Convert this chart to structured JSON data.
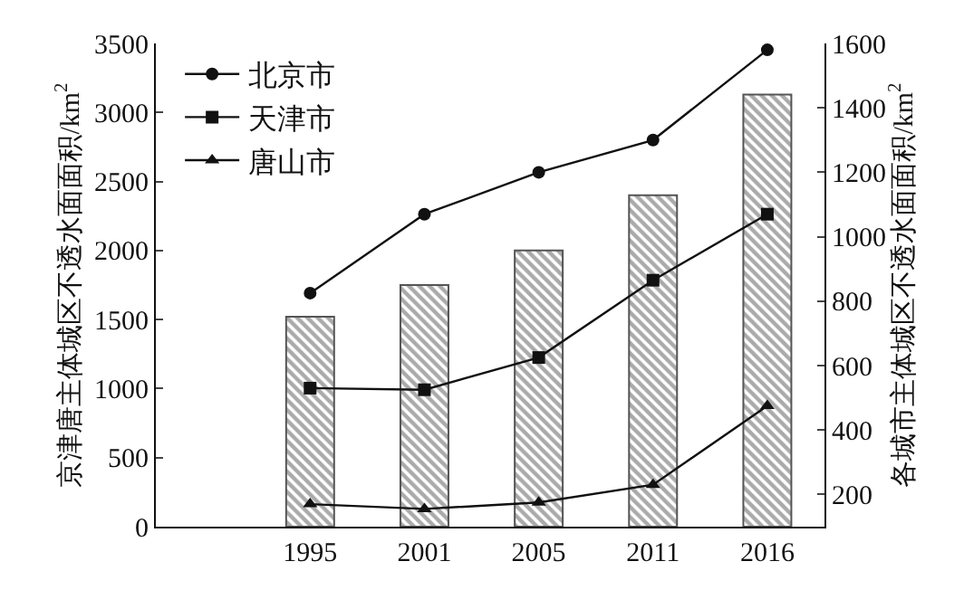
{
  "chart_data": {
    "type": "bar",
    "categories": [
      "1995",
      "2001",
      "2005",
      "2011",
      "2016"
    ],
    "ylabel": "京津唐主体城区不透水面面积/km$^{2}$",
    "y2label": "各城市主体城区不透水面面积/km$^{2}$",
    "ylim": [
      0,
      3500
    ],
    "yticks": [
      0,
      500,
      1000,
      1500,
      2000,
      2500,
      3000,
      3500
    ],
    "y2lim": [
      100,
      1600
    ],
    "y2ticks": [
      200,
      400,
      600,
      800,
      1000,
      1200,
      1400,
      1600
    ],
    "legend": "top left",
    "series": [
      {
        "color": "#555555",
        "values": [
          1520,
          1750,
          2000,
          2400,
          3130
        ]
      },
      {
        "type": "line",
        "name": "北京市",
        "axis": "y2",
        "color": "#111111",
        "marker": "circle",
        "line_style": "solid",
        "values": [
          825,
          1070,
          1200,
          1300,
          1580
        ]
      },
      {
        "type": "line",
        "name": "天津市",
        "axis": "y2",
        "color": "#111111",
        "marker": "square",
        "line_style": "solid",
        "values": [
          530,
          525,
          625,
          865,
          1070
        ]
      },
      {
        "type": "line",
        "name": "唐山市",
        "axis": "y2",
        "color": "#111111",
        "marker": "triangle",
        "line_style": "solid",
        "values": [
          170,
          155,
          175,
          230,
          475
        ]
      }
    ]
  }
}
